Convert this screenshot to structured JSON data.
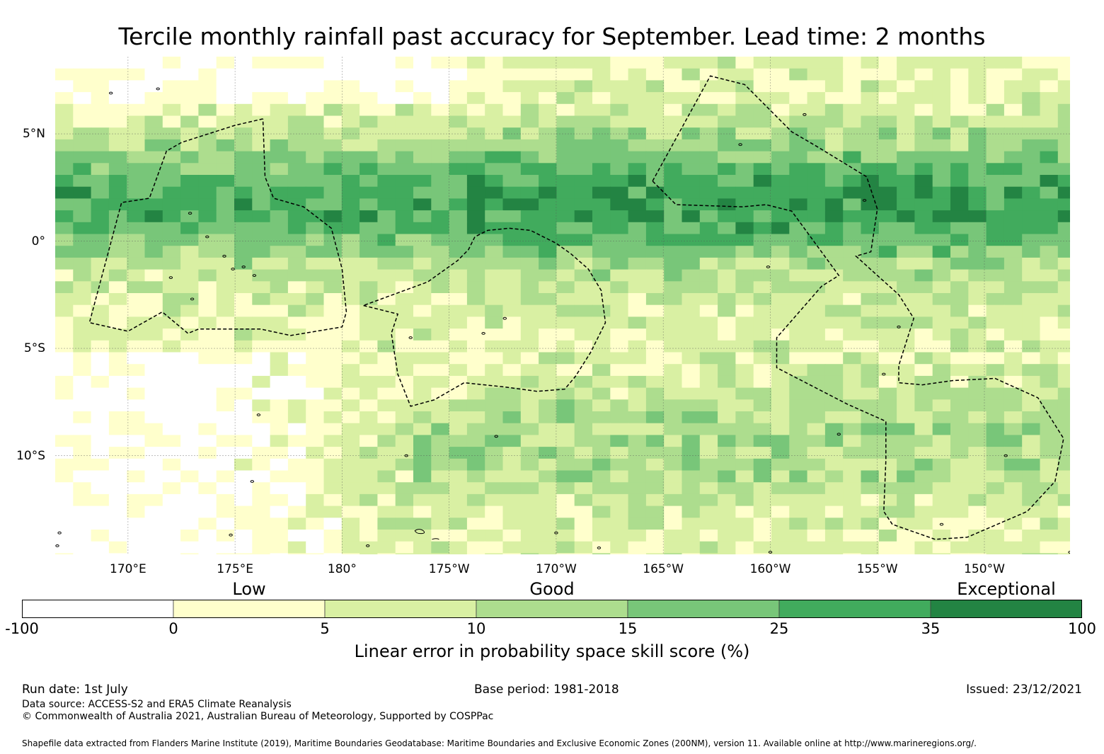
{
  "title": "Tercile monthly rainfall past accuracy for September. Lead time: 2 months",
  "map": {
    "lon_labels": [
      {
        "lon": 170,
        "text": "170°E"
      },
      {
        "lon": 175,
        "text": "175°E"
      },
      {
        "lon": 180,
        "text": "180°"
      },
      {
        "lon": 185,
        "text": "175°W"
      },
      {
        "lon": 190,
        "text": "170°W"
      },
      {
        "lon": 195,
        "text": "165°W"
      },
      {
        "lon": 200,
        "text": "160°W"
      },
      {
        "lon": 205,
        "text": "155°W"
      },
      {
        "lon": 210,
        "text": "150°W"
      }
    ],
    "lat_labels": [
      {
        "lat": 5,
        "text": "5°N"
      },
      {
        "lat": 0,
        "text": "0°"
      },
      {
        "lat": -5,
        "text": "5°S"
      },
      {
        "lat": -10,
        "text": "10°S"
      }
    ],
    "lon_range": [
      166.6,
      214.0
    ],
    "lat_range": [
      -14.6,
      8.6
    ],
    "grid_lines": true,
    "eez_boundaries": "dashed"
  },
  "legend": {
    "categories": [
      {
        "text": "Low",
        "value": 2.5
      },
      {
        "text": "Good",
        "value": 12.5
      },
      {
        "text": "Exceptional",
        "value": 67.5
      }
    ],
    "bins": [
      {
        "from": -100,
        "to": 0,
        "color": "#ffffff"
      },
      {
        "from": 0,
        "to": 5,
        "color": "#ffffcc"
      },
      {
        "from": 5,
        "to": 10,
        "color": "#d9f0a3"
      },
      {
        "from": 10,
        "to": 15,
        "color": "#addd8e"
      },
      {
        "from": 15,
        "to": 25,
        "color": "#78c679"
      },
      {
        "from": 25,
        "to": 35,
        "color": "#41ab5d"
      },
      {
        "from": 35,
        "to": 100,
        "color": "#238443"
      }
    ],
    "ticks": [
      "-100",
      "0",
      "5",
      "10",
      "15",
      "25",
      "35",
      "100"
    ],
    "label": "Linear error in probability space skill score (%)"
  },
  "footer": {
    "run_date": "Run date: 1st July",
    "base_period": "Base period: 1981-2018",
    "issued": "Issued: 23/12/2021",
    "data_source": "Data source: ACCESS-S2 and ERA5 Climate Reanalysis",
    "copyright": "© Commonwealth of Australia 2021, Australian Bureau of Meteorology, Supported by COSPPac",
    "shapefile": "Shapefile data extracted from Flanders Marine Institute (2019), Maritime Boundaries Geodatabase: Maritime Boundaries and Exclusive Economic Zones (200NM), version 11. Available online at http://www.marineregions.org/."
  }
}
